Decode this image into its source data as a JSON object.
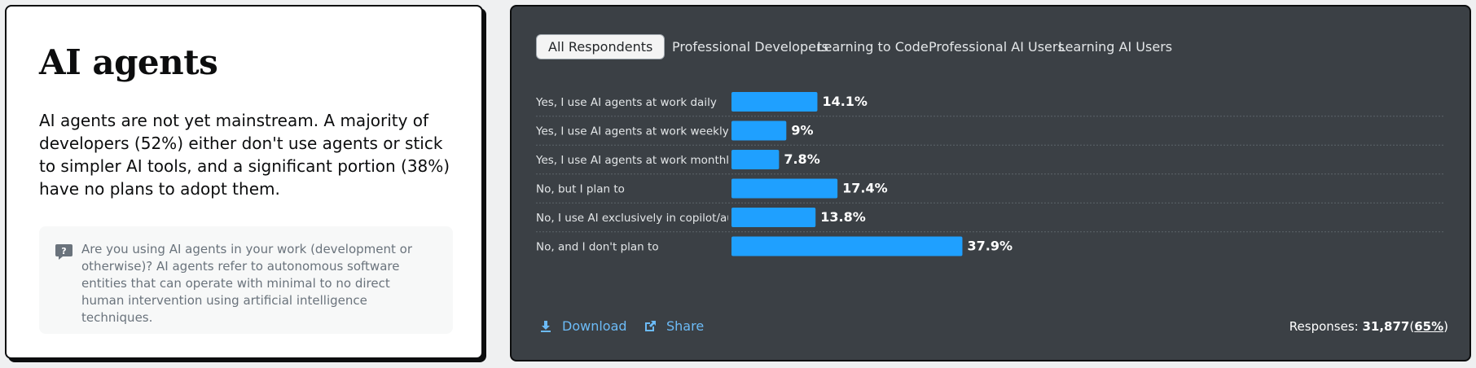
{
  "info": {
    "title": "AI agents",
    "description": "AI agents are not yet mainstream. A majority of developers (52%) either don't use agents or stick to simpler AI tools, and a significant portion (38%) have no plans to adopt them.",
    "question": "Are you using AI agents in your work (development or otherwise)? AI agents refer to autonomous software entities that can operate with minimal to no direct human intervention using artificial intelligence techniques.",
    "question_icon": "question-icon"
  },
  "tabs": [
    {
      "label": "All Respondents",
      "active": true
    },
    {
      "label": "Professional Developers",
      "active": false
    },
    {
      "label": "Learning to Code",
      "active": false
    },
    {
      "label": "Professional AI Users",
      "active": false
    },
    {
      "label": "Learning AI Users",
      "active": false
    }
  ],
  "chart_data": {
    "type": "bar",
    "orientation": "horizontal",
    "categories": [
      "Yes, I use AI agents at work daily",
      "Yes, I use AI agents at work weekly",
      "Yes, I use AI agents at work monthly or infrequently",
      "No, but I plan to",
      "No, I use AI exclusively in copilot/autocomplete mode",
      "No, and I don't plan to"
    ],
    "values": [
      14.1,
      9,
      7.8,
      17.4,
      13.8,
      37.9
    ],
    "value_labels": [
      "14.1%",
      "9%",
      "7.8%",
      "17.4%",
      "13.8%",
      "37.9%"
    ],
    "bar_color": "#1fa0ff",
    "grid": false
  },
  "actions": {
    "download_label": "Download",
    "download_icon": "download-icon",
    "share_label": "Share",
    "share_icon": "external-link-icon"
  },
  "responses": {
    "label": "Responses:",
    "count": "31,877",
    "percent": "65%"
  },
  "colors": {
    "accent": "#1fa0ff",
    "chart_background": "#3b4045",
    "link": "#6cbbf7"
  }
}
